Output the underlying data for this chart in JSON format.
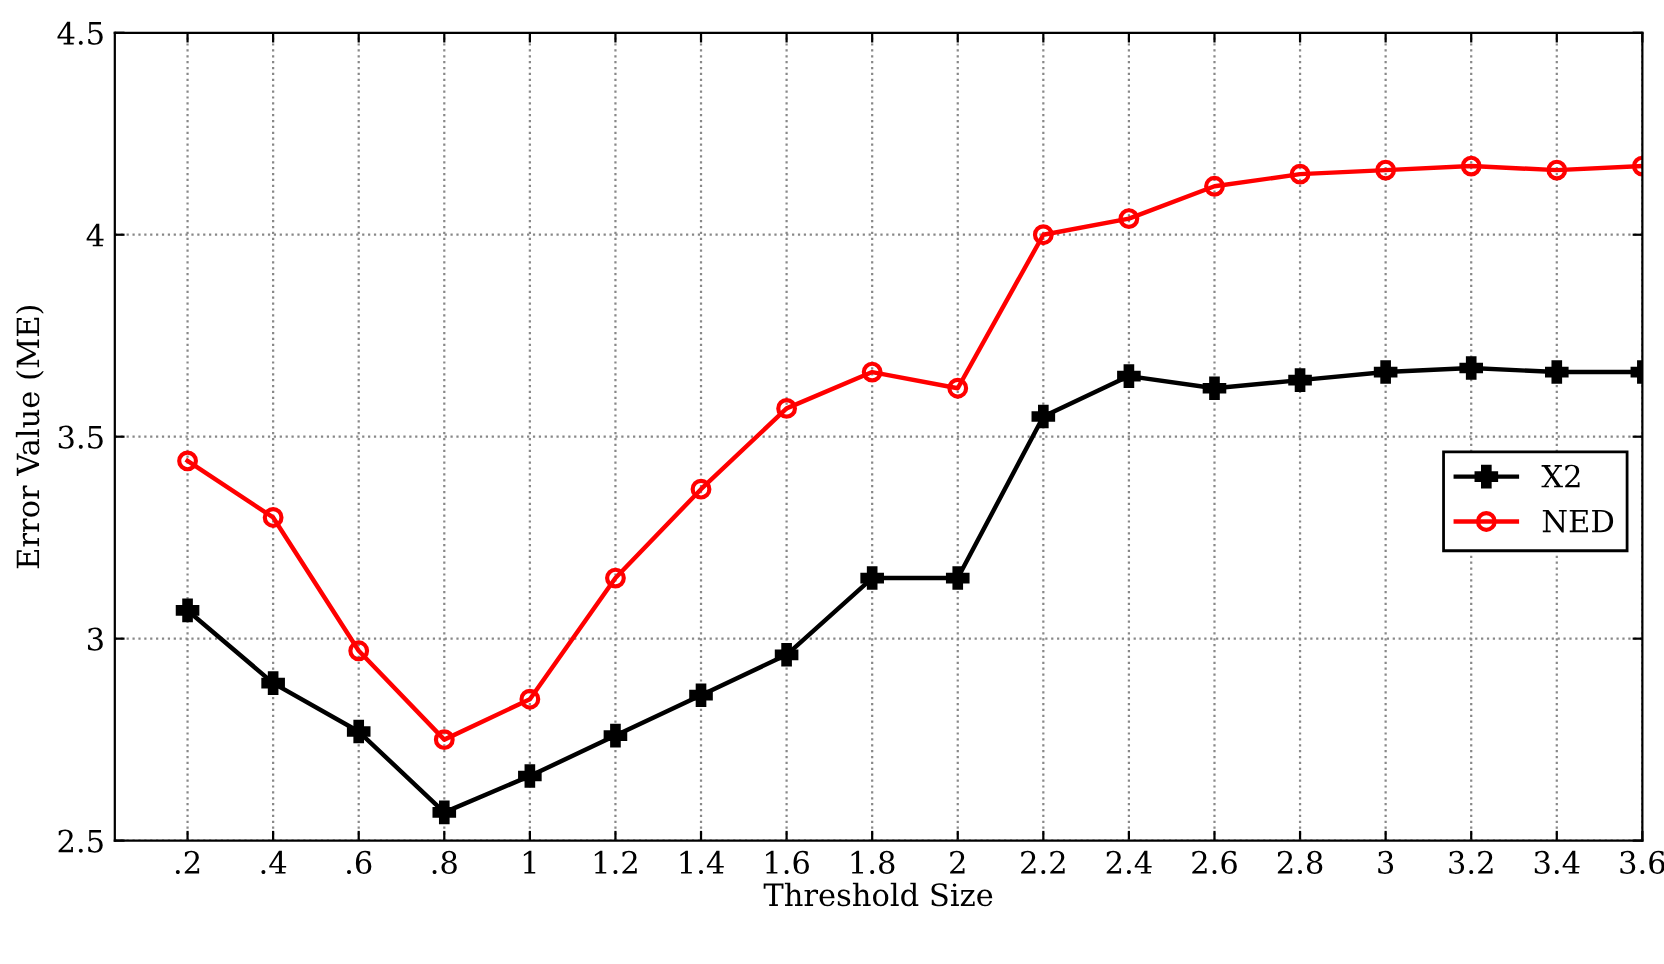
{
  "chart_data": {
    "type": "line",
    "xlabel": "Threshold Size",
    "ylabel": "Error Value (ME)",
    "x": [
      0.2,
      0.4,
      0.6,
      0.8,
      1,
      1.2,
      1.4,
      1.6,
      1.8,
      2,
      2.2,
      2.4,
      2.6,
      2.8,
      3,
      3.2,
      3.4,
      3.6
    ],
    "series": [
      {
        "name": "X2",
        "color": "#000000",
        "marker": "cross",
        "values": [
          3.07,
          2.89,
          2.77,
          2.57,
          2.66,
          2.76,
          2.86,
          2.96,
          3.15,
          3.15,
          3.55,
          3.65,
          3.62,
          3.64,
          3.66,
          3.67,
          3.66,
          3.66
        ]
      },
      {
        "name": "NED",
        "color": "#ff0000",
        "marker": "circle",
        "values": [
          3.44,
          3.3,
          2.97,
          2.75,
          2.85,
          3.15,
          3.37,
          3.57,
          3.66,
          3.62,
          4.0,
          4.04,
          4.12,
          4.15,
          4.16,
          4.17,
          4.16,
          4.17
        ]
      }
    ],
    "xlim": [
      0.03,
      3.6
    ],
    "xticks": [
      {
        "value": 0.2,
        "label": ".2"
      },
      {
        "value": 0.4,
        "label": ".4"
      },
      {
        "value": 0.6,
        "label": ".6"
      },
      {
        "value": 0.8,
        "label": ".8"
      },
      1,
      1.2,
      1.4,
      1.6,
      1.8,
      2,
      2.2,
      2.4,
      2.6,
      2.8,
      3,
      3.2,
      3.4,
      3.6
    ],
    "ylim": [
      2.5,
      4.5
    ],
    "yticks": [
      2.5,
      3,
      3.5,
      4,
      4.5
    ],
    "grid": true,
    "legend": "right",
    "line_style": "solid"
  }
}
